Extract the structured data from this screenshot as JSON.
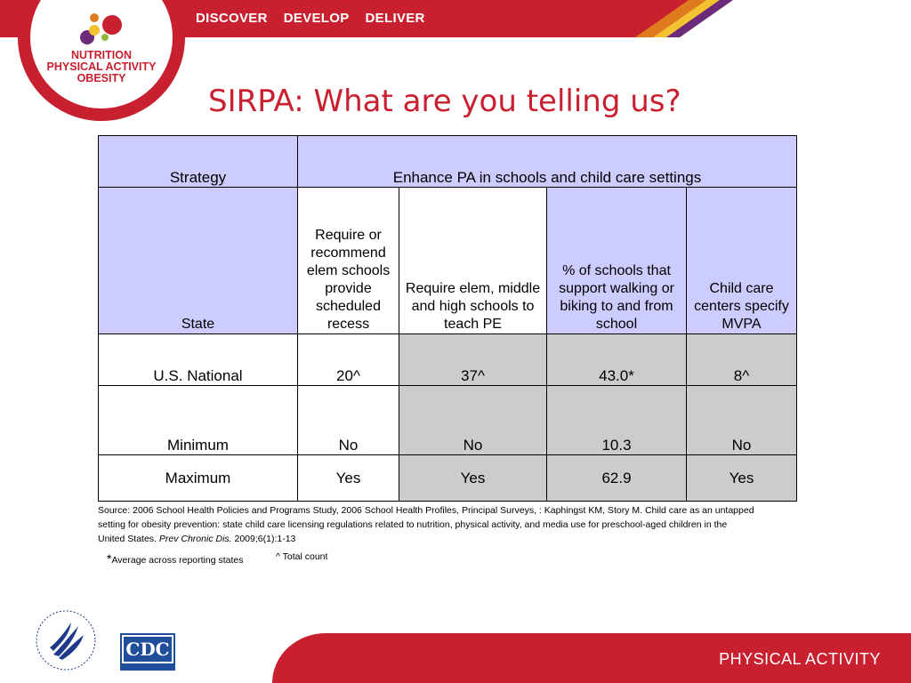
{
  "header": {
    "nav": [
      "DISCOVER",
      "DEVELOP",
      "DELIVER"
    ],
    "logo_lines": [
      "NUTRITION",
      "PHYSICAL ACTIVITY",
      "OBESITY"
    ]
  },
  "slide": {
    "title": "SIRPA: What are you telling us?"
  },
  "table": {
    "strategy_label": "Strategy",
    "strategy_value": "Enhance PA in schools and child care settings",
    "state_label": "State",
    "columns": [
      "Require or recommend elem schools provide scheduled recess",
      "Require elem, middle and high schools to teach PE",
      "% of schools that support walking or biking to and from school",
      "Child care centers specify MVPA"
    ],
    "rows": [
      {
        "state": "U.S. National",
        "values": [
          "20^",
          "37^",
          "43.0*",
          "8^"
        ]
      },
      {
        "state": "Minimum",
        "values": [
          "No",
          "No",
          "10.3",
          "No"
        ]
      },
      {
        "state": "Maximum",
        "values": [
          "Yes",
          "Yes",
          "62.9",
          "Yes"
        ]
      }
    ]
  },
  "source": {
    "text": "Source: 2006 School Health Policies and Programs Study, 2006 School Health Profiles, Principal Surveys, : Kaphingst KM, Story M. Child care as an untapped setting for obesity prevention: state child care licensing regulations related to nutrition, physical activity, and media use for preschool-aged children in the United States.",
    "journal": "Prev Chronic Dis.",
    "citation_tail": "2009;6(1):1-13"
  },
  "notes": {
    "star": "*",
    "star_text": "Average across reporting states",
    "caret_text": "^ Total count"
  },
  "footer": {
    "label": "PHYSICAL ACTIVITY",
    "cdc_text": "CDC",
    "colors": {
      "brand_red": "#c8202f",
      "lavender": "#ccccff",
      "gray": "#cccccc"
    }
  }
}
